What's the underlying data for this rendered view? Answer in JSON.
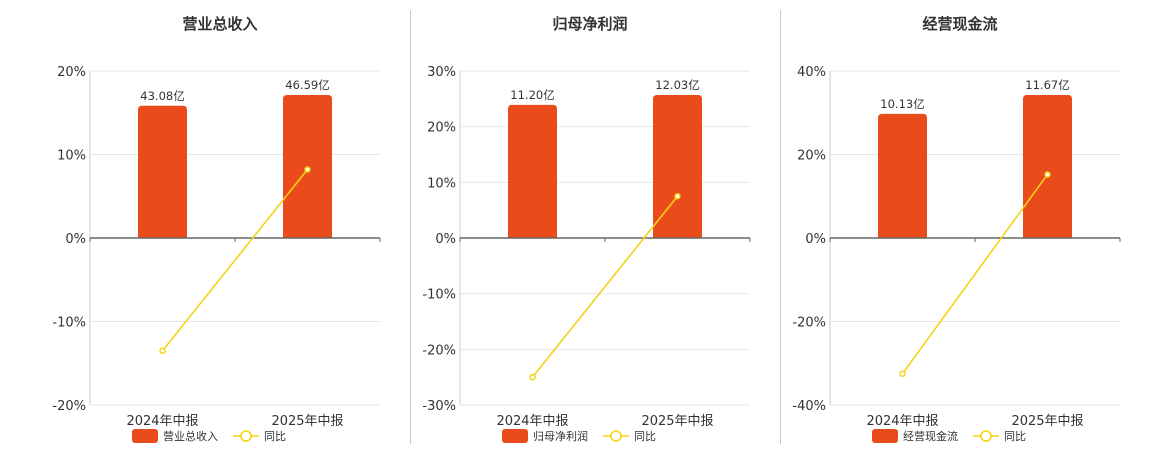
{
  "colors": {
    "bar": "#e94b1b",
    "line": "#f2d315",
    "grid": "#e6e6e6",
    "axis": "#666666",
    "divider": "#c8c8c8"
  },
  "chart_data": [
    {
      "type": "bar",
      "title": "营业总收入",
      "categories": [
        "2024年中报",
        "2025年中报"
      ],
      "bar_series": {
        "name": "营业总收入",
        "labels": [
          "43.08亿",
          "46.59亿"
        ],
        "values": [
          43.08,
          46.59
        ]
      },
      "line_series": {
        "name": "同比",
        "values": [
          -13.5,
          8.2
        ]
      },
      "ylim": [
        -20,
        20
      ],
      "yticks": [
        "20%",
        "10%",
        "0%",
        "-10%",
        "-20%"
      ],
      "ytick_values": [
        20,
        10,
        0,
        -10,
        -20
      ],
      "grid": true,
      "legend": "bottom"
    },
    {
      "type": "bar",
      "title": "归母净利润",
      "categories": [
        "2024年中报",
        "2025年中报"
      ],
      "bar_series": {
        "name": "归母净利润",
        "labels": [
          "11.20亿",
          "12.03亿"
        ],
        "values": [
          11.2,
          12.03
        ]
      },
      "line_series": {
        "name": "同比",
        "values": [
          -25.0,
          7.5
        ]
      },
      "ylim": [
        -30,
        30
      ],
      "yticks": [
        "30%",
        "20%",
        "10%",
        "0%",
        "-10%",
        "-20%",
        "-30%"
      ],
      "ytick_values": [
        30,
        20,
        10,
        0,
        -10,
        -20,
        -30
      ],
      "grid": true,
      "legend": "bottom"
    },
    {
      "type": "bar",
      "title": "经营现金流",
      "categories": [
        "2024年中报",
        "2025年中报"
      ],
      "bar_series": {
        "name": "经营现金流",
        "labels": [
          "10.13亿",
          "11.67亿"
        ],
        "values": [
          10.13,
          11.67
        ]
      },
      "line_series": {
        "name": "同比",
        "values": [
          -32.5,
          15.2
        ]
      },
      "ylim": [
        -40,
        40
      ],
      "yticks": [
        "40%",
        "20%",
        "0%",
        "-20%",
        "-40%"
      ],
      "ytick_values": [
        40,
        20,
        0,
        -20,
        -40
      ],
      "grid": true,
      "legend": "bottom"
    }
  ]
}
